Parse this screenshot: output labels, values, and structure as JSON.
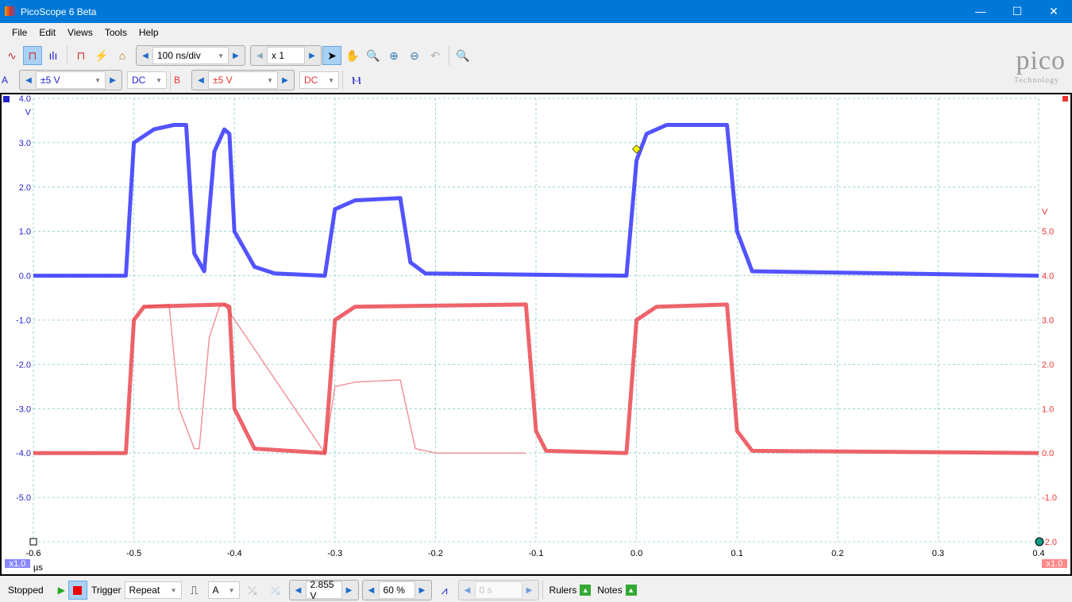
{
  "window": {
    "title": "PicoScope 6 Beta",
    "min": "—",
    "max": "☐",
    "close": "✕"
  },
  "menu": [
    "File",
    "Edit",
    "Views",
    "Tools",
    "Help"
  ],
  "toolbar": {
    "timebase": "100 ns/div",
    "zoom": "x 1"
  },
  "channels": {
    "a": {
      "label": "A",
      "range": "±5 V",
      "coupling": "DC",
      "color": "#1a1aff"
    },
    "b": {
      "label": "B",
      "range": "±5 V",
      "coupling": "DC",
      "color": "#e8303a"
    }
  },
  "logo": {
    "name": "pico",
    "sub": "Technology"
  },
  "status": {
    "state": "Stopped",
    "trigger_label": "Trigger",
    "trigger_mode": "Repeat",
    "trigger_channel": "A",
    "threshold": "2.855 V",
    "pretrigger": "60 %",
    "delay": "0 s",
    "rulers": "Rulers",
    "notes": "Notes"
  },
  "chart_data": {
    "type": "line",
    "xlabel": "µs",
    "xlim": [
      -0.6,
      0.4
    ],
    "xticks": [
      "-0.6",
      "-0.5",
      "-0.4",
      "-0.3",
      "-0.2",
      "-0.1",
      "0.0",
      "0.1",
      "0.2",
      "0.3",
      "0.4"
    ],
    "left_axis": {
      "unit": "V",
      "ylim": [
        -6,
        4
      ],
      "ticks": [
        "4.0",
        "3.0",
        "2.0",
        "1.0",
        "0.0",
        "-1.0",
        "-2.0",
        "-3.0",
        "-4.0",
        "-5.0"
      ]
    },
    "right_axis": {
      "unit": "V",
      "ylim": [
        -2,
        8
      ],
      "ticks": [
        "5.0",
        "4.0",
        "3.0",
        "2.0",
        "1.0",
        "0.0",
        "-1.0",
        "-2.0"
      ]
    },
    "zoom_badges": [
      "x1.0",
      "x1.0"
    ],
    "grid": true,
    "trigger": {
      "x": 0,
      "y": 2.855
    },
    "series": [
      {
        "channel": "A",
        "axis": "left",
        "color": "#1a1aff",
        "x": [
          -0.6,
          -0.508,
          -0.5,
          -0.48,
          -0.46,
          -0.448,
          -0.44,
          -0.43,
          -0.42,
          -0.41,
          -0.405,
          -0.4,
          -0.38,
          -0.36,
          -0.31,
          -0.3,
          -0.28,
          -0.235,
          -0.225,
          -0.21,
          -0.01,
          0,
          0.01,
          0.03,
          0.09,
          0.1,
          0.115,
          0.4
        ],
        "y": [
          0,
          0,
          3.0,
          3.3,
          3.4,
          3.4,
          0.5,
          0.1,
          2.8,
          3.3,
          3.2,
          1.0,
          0.2,
          0.05,
          0,
          1.5,
          1.7,
          1.75,
          0.3,
          0.05,
          0,
          2.6,
          3.2,
          3.4,
          3.4,
          1.0,
          0.1,
          0
        ]
      },
      {
        "channel": "B",
        "axis": "right",
        "color": "#e8303a",
        "x": [
          -0.6,
          -0.508,
          -0.5,
          -0.49,
          -0.41,
          -0.405,
          -0.4,
          -0.38,
          -0.31,
          -0.3,
          -0.28,
          -0.11,
          -0.1,
          -0.09,
          -0.01,
          0,
          0.02,
          0.09,
          0.1,
          0.115,
          0.4
        ],
        "y": [
          0,
          0,
          3.0,
          3.3,
          3.35,
          3.3,
          1.0,
          0.1,
          0,
          3.0,
          3.3,
          3.35,
          0.5,
          0.05,
          0,
          3.0,
          3.3,
          3.35,
          0.5,
          0.05,
          0
        ]
      },
      {
        "channel": "B",
        "axis": "right",
        "color": "#f08a90",
        "x": [
          -0.49,
          -0.465,
          -0.455,
          -0.44,
          -0.435,
          -0.425,
          -0.415,
          -0.41,
          -0.31,
          -0.3,
          -0.28,
          -0.235,
          -0.22,
          -0.2,
          -0.11
        ],
        "y": [
          3.3,
          3.35,
          1.0,
          0.1,
          0.1,
          2.6,
          3.3,
          3.35,
          0,
          1.5,
          1.6,
          1.65,
          0.1,
          0,
          0
        ]
      }
    ]
  }
}
